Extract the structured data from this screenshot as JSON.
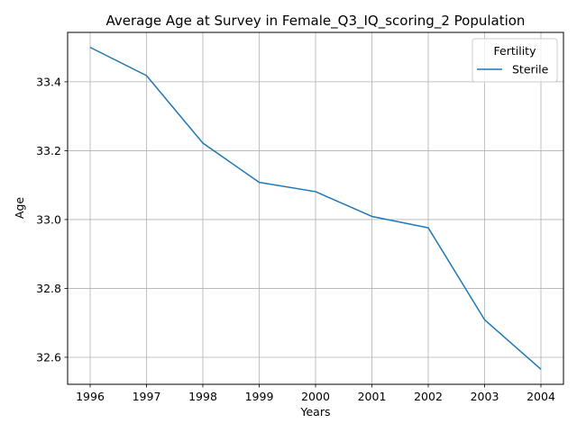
{
  "chart_data": {
    "type": "line",
    "title": "Average Age at Survey in Female_Q3_IQ_scoring_2 Population",
    "xlabel": "Years",
    "ylabel": "Age",
    "x": [
      1996,
      1997,
      1998,
      1999,
      2000,
      2001,
      2002,
      2003,
      2004
    ],
    "x_tick_labels": [
      "1996",
      "1997",
      "1998",
      "1999",
      "2000",
      "2001",
      "2002",
      "2003",
      "2004"
    ],
    "y_tick_labels": [
      "32.6",
      "32.8",
      "33.0",
      "33.2",
      "33.4"
    ],
    "y_ticks": [
      32.6,
      32.8,
      33.0,
      33.2,
      33.4
    ],
    "xlim": [
      1995.6,
      2004.4
    ],
    "ylim": [
      32.5215,
      33.5435
    ],
    "grid": true,
    "legend": {
      "title": "Fertility",
      "placement": "top-right"
    },
    "series": [
      {
        "name": "Sterile",
        "color": "#1f77b4",
        "values": [
          33.5,
          33.418,
          33.222,
          33.108,
          33.081,
          33.009,
          32.976,
          32.709,
          32.565
        ]
      }
    ]
  }
}
